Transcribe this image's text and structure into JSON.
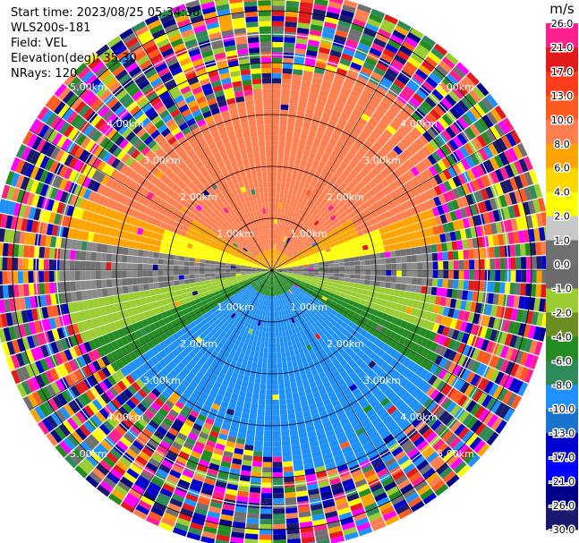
{
  "header": {
    "start_time": "Start time: 2023/08/25 05:34:36",
    "instrument": "WLS200s-181",
    "field": "Field: VEL",
    "elevation": "Elevation(deg): 35.30",
    "nrays": "NRays: 120"
  },
  "chart_data": {
    "type": "heatmap",
    "projection": "polar-ppi",
    "nrays": 120,
    "range_rings_km": [
      1.0,
      2.0,
      3.0,
      4.0,
      5.0
    ],
    "ring_labels": [
      "1.00km",
      "2.00km",
      "3.00km",
      "4.00km",
      "5.00km"
    ],
    "max_range_km": 5.4,
    "colorbar": {
      "unit": "m/s",
      "ticks": [
        "26.0",
        "21.0",
        "17.0",
        "13.0",
        "10.0",
        "8.0",
        "6.0",
        "4.0",
        "2.0",
        "1.0",
        "0.0",
        "-1.0",
        "-2.0",
        "-4.0",
        "-6.0",
        "-8.0",
        "-10.0",
        "-13.0",
        "-17.0",
        "-21.0",
        "-26.0",
        "-30.0"
      ],
      "colors": [
        "#ff1f8f",
        "#ff1f8f",
        "#e31a1c",
        "#ff3d1c",
        "#ff5a1f",
        "#ff7f50",
        "#ffa300",
        "#ffd700",
        "#ffff00",
        "#c8c8c8",
        "#707070",
        "#6b6b6b",
        "#9acd32",
        "#6b8e23",
        "#228b22",
        "#2e8b57",
        "#1e90ff",
        "#1874cd",
        "#0000cd",
        "#0000ff",
        "#00008b",
        "#191970"
      ]
    },
    "colors": {
      "pos_far": "#ff7f50",
      "pos_mid": "#ffa300",
      "pos_near": "#ffff00",
      "zero": "#707070",
      "neg_near": "#9acd32",
      "neg_mid": "#228b22",
      "neg_far": "#1e90ff",
      "noise": [
        "#ff1f8f",
        "#e31a1c",
        "#ff7f50",
        "#ffa300",
        "#ffff00",
        "#9acd32",
        "#228b22",
        "#1e90ff",
        "#0000cd",
        "#00008b",
        "#707070",
        "#ff5a1f",
        "#2e8b57",
        "#ff00ff",
        "#191970"
      ]
    }
  }
}
